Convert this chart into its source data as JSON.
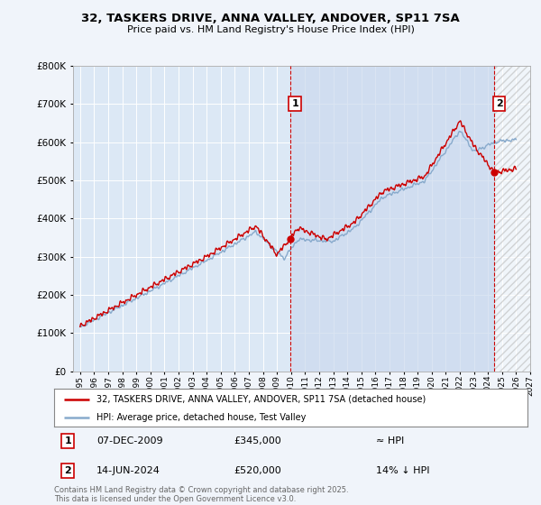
{
  "title": "32, TASKERS DRIVE, ANNA VALLEY, ANDOVER, SP11 7SA",
  "subtitle": "Price paid vs. HM Land Registry's House Price Index (HPI)",
  "bg_color": "#f0f4fa",
  "plot_bg_color": "#dce8f5",
  "highlight_color": "#ccd9ee",
  "grid_color": "#ffffff",
  "line_color_red": "#cc0000",
  "line_color_blue": "#88aacc",
  "annotation_vline_color": "#cc0000",
  "point1_x": 2009.93,
  "point1_y": 345000,
  "point2_x": 2024.45,
  "point2_y": 520000,
  "point1_date": "07-DEC-2009",
  "point1_price": "£345,000",
  "point1_hpi": "≈ HPI",
  "point2_date": "14-JUN-2024",
  "point2_price": "£520,000",
  "point2_hpi": "14% ↓ HPI",
  "legend_line1": "32, TASKERS DRIVE, ANNA VALLEY, ANDOVER, SP11 7SA (detached house)",
  "legend_line2": "HPI: Average price, detached house, Test Valley",
  "footer": "Contains HM Land Registry data © Crown copyright and database right 2025.\nThis data is licensed under the Open Government Licence v3.0.",
  "ylim": [
    0,
    800000
  ],
  "yticks": [
    0,
    100000,
    200000,
    300000,
    400000,
    500000,
    600000,
    700000,
    800000
  ],
  "xlim": [
    1994.5,
    2027.0
  ],
  "xticks": [
    1995,
    1996,
    1997,
    1998,
    1999,
    2000,
    2001,
    2002,
    2003,
    2004,
    2005,
    2006,
    2007,
    2008,
    2009,
    2010,
    2011,
    2012,
    2013,
    2014,
    2015,
    2016,
    2017,
    2018,
    2019,
    2020,
    2021,
    2022,
    2023,
    2024,
    2025,
    2026,
    2027
  ]
}
